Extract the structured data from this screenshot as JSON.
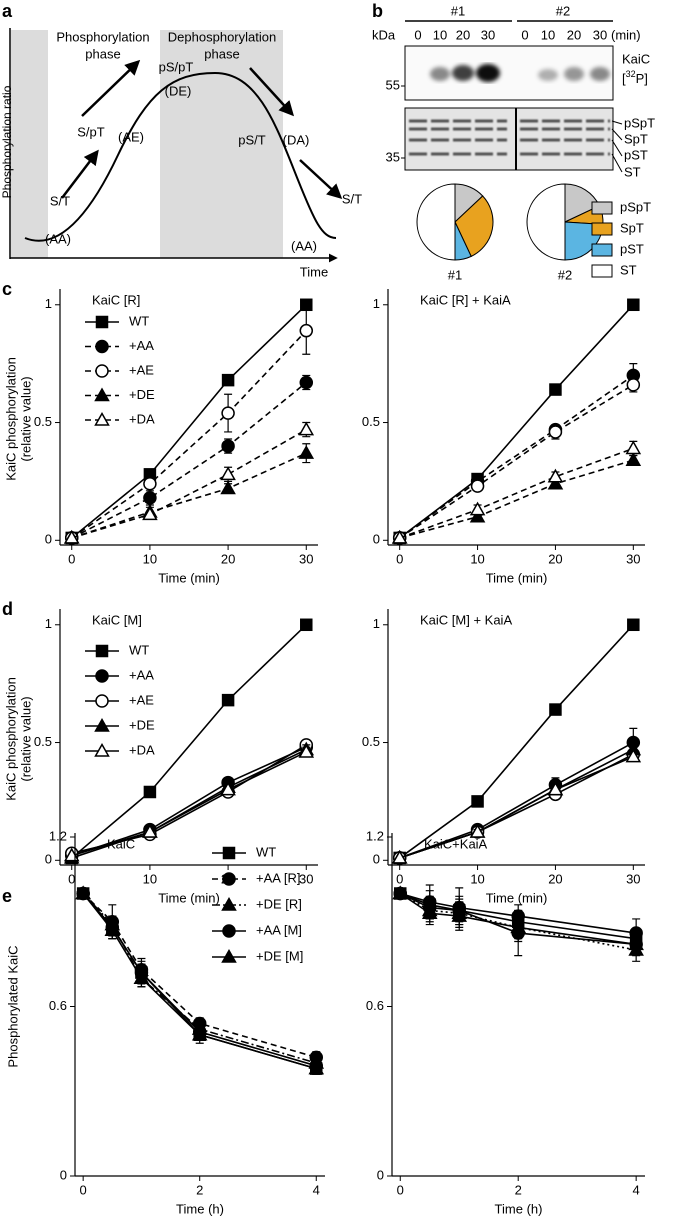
{
  "panel_labels": [
    "a",
    "b",
    "c",
    "d",
    "e"
  ],
  "diagram": {
    "y_label": "Phosphorylation ratio",
    "x_label": "Time",
    "phases": [
      {
        "line1": "Phosphorylation",
        "line2": "phase"
      },
      {
        "line1": "Dephosphorylation",
        "line2": "phase"
      }
    ],
    "states": [
      {
        "label": "S/T",
        "code": "(AA)"
      },
      {
        "label": "S/pT",
        "code": "(AE)"
      },
      {
        "label": "pS/pT",
        "code": "(DE)"
      },
      {
        "label": "pS/T",
        "code": "(DA)"
      },
      {
        "label": "S/T",
        "code": "(AA)"
      }
    ]
  },
  "blot": {
    "unit": "kDa",
    "groups": [
      "#1",
      "#2"
    ],
    "times": [
      "0",
      "10",
      "20",
      "30"
    ],
    "time_unit": "(min)",
    "markers": [
      "55",
      "35"
    ],
    "protein": "KaiC",
    "isotope_prefix": "[",
    "isotope_mass": "32",
    "isotope_suffix": "P]",
    "bands": [
      "pSpT",
      "SpT",
      "pST",
      "ST"
    ]
  },
  "chart_data": [
    {
      "type": "pie",
      "title": "#1",
      "categories": [
        "pSpT",
        "SpT",
        "pST",
        "ST"
      ],
      "values": [
        13,
        30,
        7,
        50
      ],
      "colors": [
        "#c8c8c8",
        "#e8a21f",
        "#5bb5e2",
        "#ffffff"
      ]
    },
    {
      "type": "pie",
      "title": "#2",
      "categories": [
        "pSpT",
        "SpT",
        "pST",
        "ST"
      ],
      "values": [
        18,
        8,
        24,
        50
      ],
      "colors": [
        "#c8c8c8",
        "#e8a21f",
        "#5bb5e2",
        "#ffffff"
      ],
      "legend": "right"
    },
    {
      "type": "line",
      "title": "KaiC [R]",
      "x_label": "Time (min)",
      "y_label": [
        "KaiC phosphorylation",
        "(relative value)"
      ],
      "x": [
        0,
        10,
        20,
        30
      ],
      "xlim": [
        -1.5,
        31.5
      ],
      "xticks": [
        0,
        10,
        20,
        30
      ],
      "ylim": [
        -0.02,
        1.05
      ],
      "yticks": [
        0,
        0.5,
        1
      ],
      "legend": "upper left",
      "series": [
        {
          "name": "WT",
          "color": "#000000",
          "marker": "square",
          "dash": "solid",
          "values": [
            0.01,
            0.28,
            0.68,
            1.0
          ],
          "errors": [
            0,
            0.01,
            0.01,
            0
          ]
        },
        {
          "name": "+AA",
          "color": "#000000",
          "marker": "circle",
          "dash": "dashed",
          "values": [
            0.01,
            0.18,
            0.4,
            0.67
          ],
          "errors": [
            0,
            0.03,
            0.03,
            0.03
          ]
        },
        {
          "name": "+AE",
          "color": "#000000",
          "marker": "circle-open",
          "dash": "dashed",
          "values": [
            0.01,
            0.24,
            0.54,
            0.89
          ],
          "errors": [
            0,
            0.02,
            0.08,
            0.1
          ]
        },
        {
          "name": "+DE",
          "color": "#000000",
          "marker": "triangle",
          "dash": "dashed",
          "values": [
            0.01,
            0.12,
            0.22,
            0.37
          ],
          "errors": [
            0,
            0.02,
            0.02,
            0.04
          ]
        },
        {
          "name": "+DA",
          "color": "#000000",
          "marker": "triangle-open",
          "dash": "dashed",
          "values": [
            0.01,
            0.11,
            0.28,
            0.47
          ],
          "errors": [
            0,
            0.01,
            0.03,
            0.03
          ]
        }
      ]
    },
    {
      "type": "line",
      "title": "KaiC [R] + KaiA",
      "x_label": "Time (min)",
      "x": [
        0,
        10,
        20,
        30
      ],
      "xlim": [
        -1.5,
        31.5
      ],
      "xticks": [
        0,
        10,
        20,
        30
      ],
      "ylim": [
        -0.02,
        1.05
      ],
      "yticks": [
        0,
        0.5,
        1
      ],
      "series": [
        {
          "name": "WT",
          "color": "#000000",
          "marker": "square",
          "dash": "solid",
          "values": [
            0.01,
            0.26,
            0.64,
            1.0
          ],
          "errors": [
            0,
            0.01,
            0.01,
            0
          ]
        },
        {
          "name": "+AA",
          "color": "#000000",
          "marker": "circle",
          "dash": "dashed",
          "values": [
            0.01,
            0.25,
            0.47,
            0.7
          ],
          "errors": [
            0,
            0.01,
            0.02,
            0.05
          ]
        },
        {
          "name": "+AE",
          "color": "#000000",
          "marker": "circle-open",
          "dash": "dashed",
          "values": [
            0.01,
            0.23,
            0.46,
            0.66
          ],
          "errors": [
            0,
            0.01,
            0.03,
            0.03
          ]
        },
        {
          "name": "+DE",
          "color": "#000000",
          "marker": "triangle",
          "dash": "dashed",
          "values": [
            0.01,
            0.1,
            0.24,
            0.34
          ],
          "errors": [
            0,
            0.01,
            0.02,
            0.02
          ]
        },
        {
          "name": "+DA",
          "color": "#000000",
          "marker": "triangle-open",
          "dash": "dashed",
          "values": [
            0.01,
            0.13,
            0.27,
            0.39
          ],
          "errors": [
            0,
            0.02,
            0.02,
            0.03
          ]
        }
      ]
    },
    {
      "type": "line",
      "title": "KaiC [M]",
      "x_label": "Time (min)",
      "y_label": [
        "KaiC phosphorylation",
        "(relative value)"
      ],
      "x": [
        0,
        10,
        20,
        30
      ],
      "xlim": [
        -1.5,
        31.5
      ],
      "xticks": [
        0,
        10,
        20,
        30
      ],
      "ylim": [
        -0.02,
        1.05
      ],
      "yticks": [
        0,
        0.5,
        1
      ],
      "legend": "upper left",
      "series": [
        {
          "name": "WT",
          "color": "#000000",
          "marker": "square",
          "dash": "solid",
          "values": [
            0.01,
            0.29,
            0.68,
            1.0
          ],
          "errors": [
            0,
            0.01,
            0.01,
            0
          ]
        },
        {
          "name": "+AA",
          "color": "#000000",
          "marker": "circle",
          "dash": "solid",
          "values": [
            0.02,
            0.13,
            0.33,
            0.48
          ],
          "errors": [
            0,
            0.01,
            0.02,
            0.02
          ]
        },
        {
          "name": "+AE",
          "color": "#000000",
          "marker": "circle-open",
          "dash": "solid",
          "values": [
            0.03,
            0.11,
            0.29,
            0.49
          ],
          "errors": [
            0,
            0.01,
            0.02,
            0.02
          ]
        },
        {
          "name": "+DE",
          "color": "#000000",
          "marker": "triangle",
          "dash": "solid",
          "values": [
            0.01,
            0.12,
            0.31,
            0.47
          ],
          "errors": [
            0,
            0.01,
            0.02,
            0.02
          ]
        },
        {
          "name": "+DA",
          "color": "#000000",
          "marker": "triangle-open",
          "dash": "solid",
          "values": [
            0.02,
            0.12,
            0.3,
            0.46
          ],
          "errors": [
            0,
            0.01,
            0.02,
            0.02
          ]
        }
      ]
    },
    {
      "type": "line",
      "title": "KaiC [M] + KaiA",
      "x_label": "Time (min)",
      "x": [
        0,
        10,
        20,
        30
      ],
      "xlim": [
        -1.5,
        31.5
      ],
      "xticks": [
        0,
        10,
        20,
        30
      ],
      "ylim": [
        -0.02,
        1.05
      ],
      "yticks": [
        0,
        0.5,
        1
      ],
      "series": [
        {
          "name": "WT",
          "color": "#000000",
          "marker": "square",
          "dash": "solid",
          "values": [
            0.01,
            0.25,
            0.64,
            1.0
          ],
          "errors": [
            0,
            0.01,
            0.01,
            0
          ]
        },
        {
          "name": "+AA",
          "color": "#000000",
          "marker": "circle",
          "dash": "solid",
          "values": [
            0.01,
            0.13,
            0.32,
            0.5
          ],
          "errors": [
            0,
            0.01,
            0.03,
            0.06
          ]
        },
        {
          "name": "+AE",
          "color": "#000000",
          "marker": "circle-open",
          "dash": "solid",
          "values": [
            0.01,
            0.12,
            0.28,
            0.45
          ],
          "errors": [
            0,
            0.01,
            0.02,
            0.03
          ]
        },
        {
          "name": "+DE",
          "color": "#000000",
          "marker": "triangle",
          "dash": "solid",
          "values": [
            0.01,
            0.12,
            0.3,
            0.47
          ],
          "errors": [
            0,
            0.01,
            0.02,
            0.03
          ]
        },
        {
          "name": "+DA",
          "color": "#000000",
          "marker": "triangle-open",
          "dash": "solid",
          "values": [
            0.01,
            0.12,
            0.3,
            0.44
          ],
          "errors": [
            0,
            0.01,
            0.02,
            0.02
          ]
        }
      ]
    },
    {
      "type": "line",
      "title": "KaiC",
      "x_label": "Time (h)",
      "y_label": [
        "Phosphorylated KaiC"
      ],
      "x": [
        0,
        0.5,
        1,
        2,
        4
      ],
      "xlim": [
        -0.14,
        4.15
      ],
      "xticks": [
        0,
        2,
        4
      ],
      "ylim": [
        0,
        1.2
      ],
      "yticks": [
        0,
        0.6,
        1.2
      ],
      "legend": "upper center",
      "series": [
        {
          "name": "WT",
          "color": "#000000",
          "marker": "square",
          "dash": "solid",
          "values": [
            1.0,
            0.88,
            0.72,
            0.5,
            0.38
          ],
          "errors": [
            0,
            0.04,
            0.04,
            0.03,
            0.02
          ]
        },
        {
          "name": "+AA [R]",
          "color": "#000000",
          "marker": "circle",
          "dash": "dashed",
          "values": [
            1.0,
            0.9,
            0.73,
            0.54,
            0.42
          ],
          "errors": [
            0,
            0.06,
            0.04,
            0.02,
            0.02
          ]
        },
        {
          "name": "+DE [R]",
          "color": "#000000",
          "marker": "triangle",
          "dash": "dashdot",
          "values": [
            1.0,
            0.89,
            0.7,
            0.52,
            0.4
          ],
          "errors": [
            0,
            0.03,
            0.03,
            0.02,
            0.02
          ]
        },
        {
          "name": "+AA [M]",
          "color": "#000000",
          "marker": "circle",
          "dash": "solid",
          "values": [
            1.0,
            0.88,
            0.72,
            0.51,
            0.39
          ],
          "errors": [
            0,
            0.03,
            0.03,
            0.02,
            0.02
          ]
        },
        {
          "name": "+DE [M]",
          "color": "#000000",
          "marker": "triangle",
          "dash": "solid",
          "values": [
            1.0,
            0.87,
            0.7,
            0.5,
            0.38
          ],
          "errors": [
            0,
            0.03,
            0.03,
            0.02,
            0.02
          ]
        }
      ]
    },
    {
      "type": "line",
      "title": "KaiC+KaiA",
      "x_label": "Time (h)",
      "x": [
        0,
        0.5,
        1,
        2,
        4
      ],
      "xlim": [
        -0.14,
        4.15
      ],
      "xticks": [
        0,
        2,
        4
      ],
      "ylim": [
        0,
        1.2
      ],
      "yticks": [
        0,
        0.6,
        1.2
      ],
      "series": [
        {
          "name": "WT",
          "color": "#000000",
          "marker": "square",
          "dash": "solid",
          "values": [
            1.0,
            0.96,
            0.94,
            0.9,
            0.84
          ],
          "errors": [
            0,
            0.05,
            0.04,
            0.04,
            0.03
          ]
        },
        {
          "name": "+AA [R]",
          "color": "#000000",
          "marker": "circle",
          "dash": "solid",
          "values": [
            1.0,
            0.97,
            0.95,
            0.92,
            0.86
          ],
          "errors": [
            0,
            0.06,
            0.07,
            0.04,
            0.05
          ]
        },
        {
          "name": "+DE [R]",
          "color": "#000000",
          "marker": "triangle",
          "dash": "dotted",
          "values": [
            1.0,
            0.94,
            0.93,
            0.88,
            0.8
          ],
          "errors": [
            0,
            0.04,
            0.04,
            0.05,
            0.04
          ]
        },
        {
          "name": "+AA [M]",
          "color": "#000000",
          "marker": "circle",
          "dash": "solid",
          "values": [
            1.0,
            0.95,
            0.94,
            0.86,
            0.82
          ],
          "errors": [
            0,
            0.04,
            0.05,
            0.08,
            0.04
          ]
        },
        {
          "name": "+DE [M]",
          "color": "#000000",
          "marker": "triangle",
          "dash": "solid",
          "values": [
            1.0,
            0.93,
            0.92,
            0.88,
            0.82
          ],
          "errors": [
            0,
            0.04,
            0.05,
            0.04,
            0.03
          ]
        }
      ]
    }
  ]
}
